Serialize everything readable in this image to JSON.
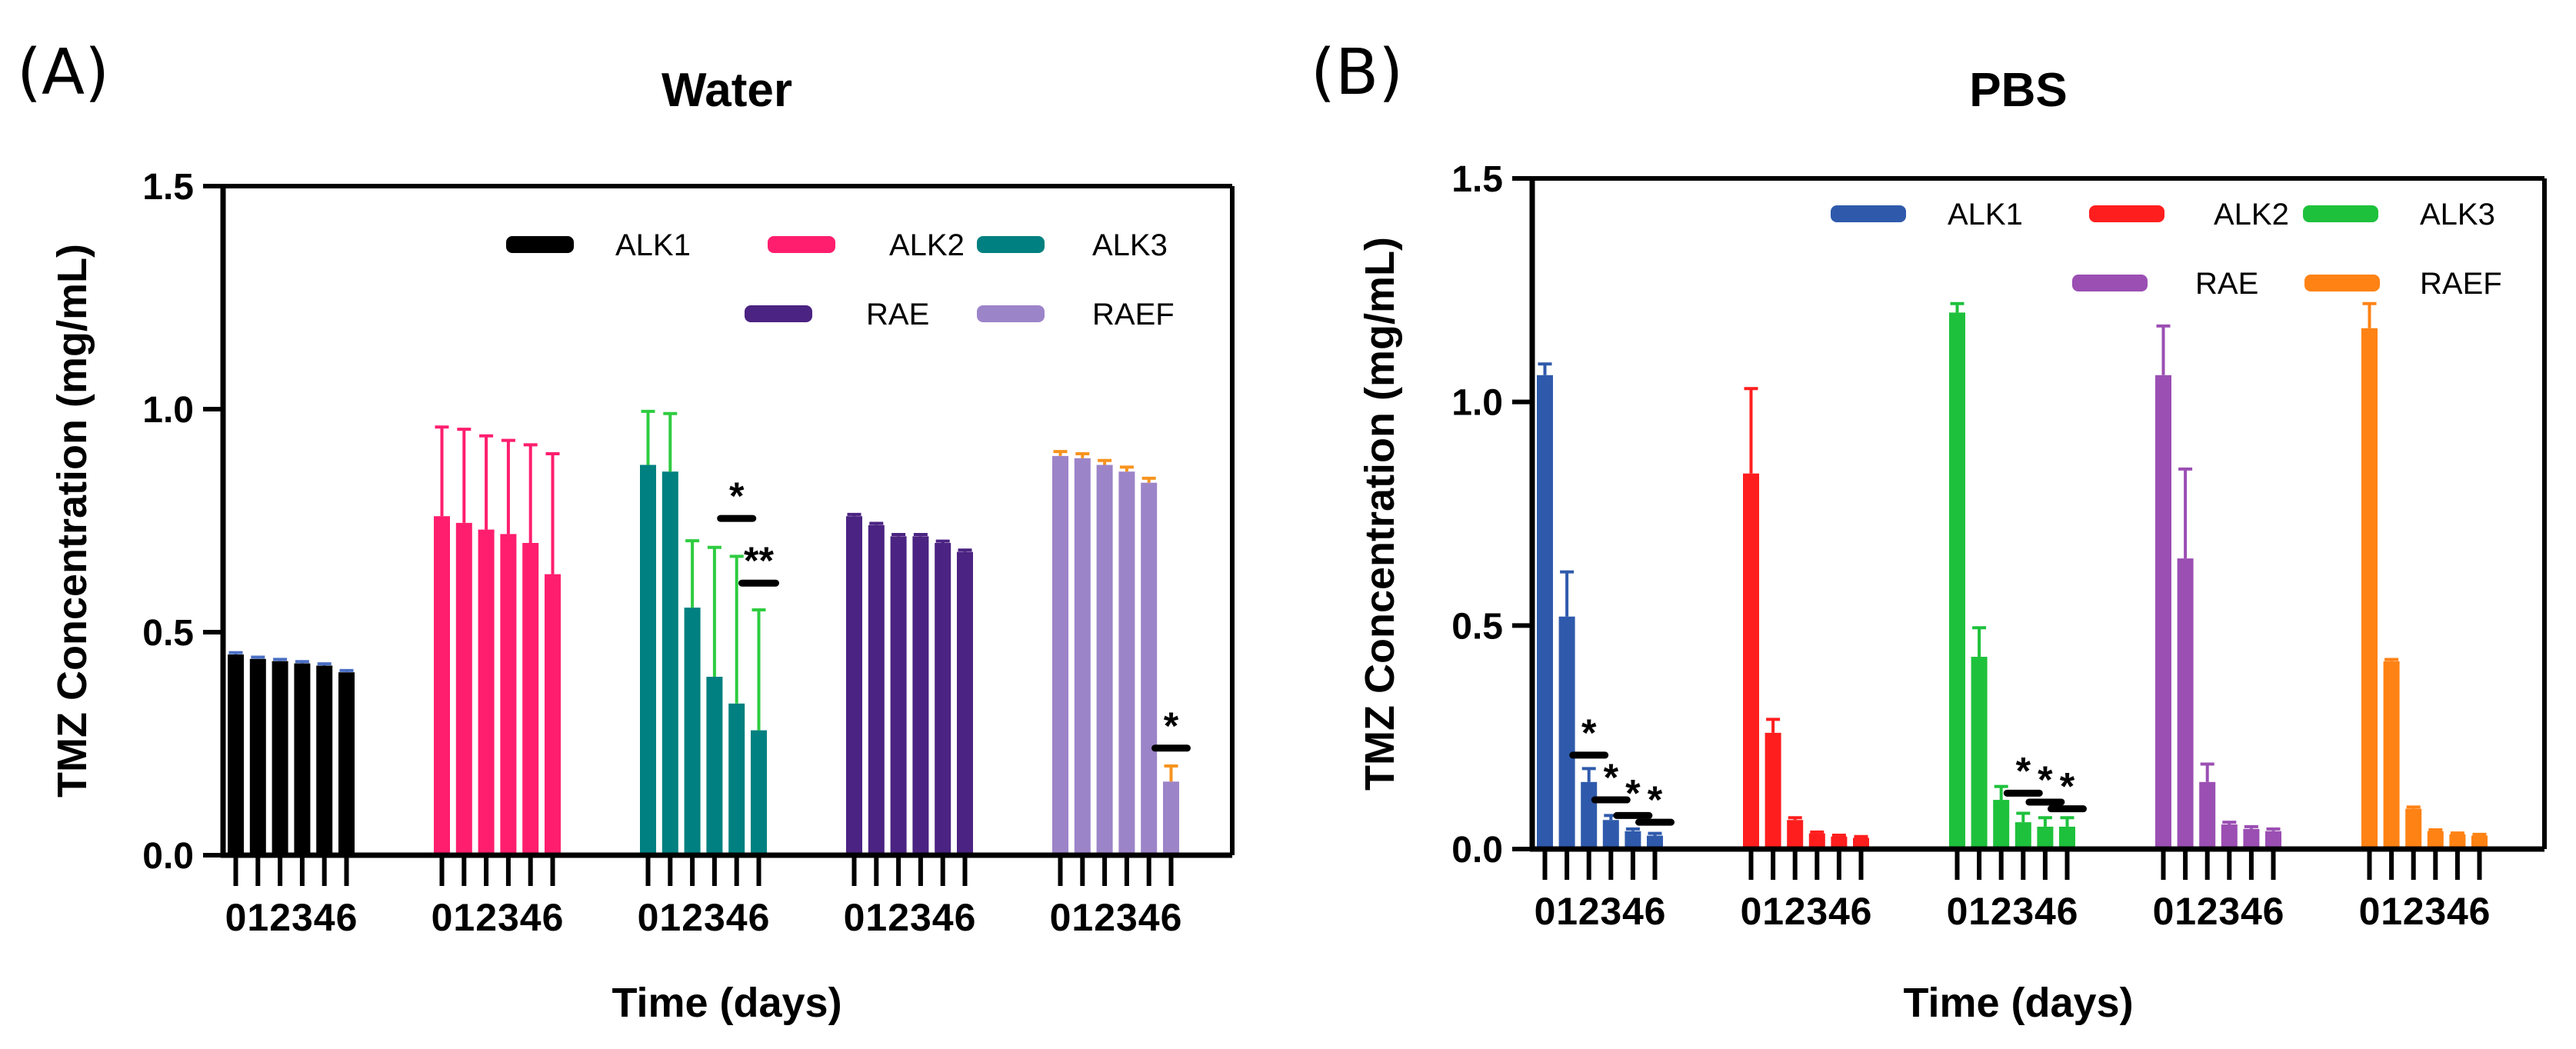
{
  "chart_data": [
    {
      "type": "bar",
      "panel": "(A)",
      "title": "Water",
      "ylabel": "TMZ Concentration (mg/mL)",
      "xlabel": "Time (days)",
      "ylim": [
        0,
        1.5
      ],
      "yticks": [
        "0.0",
        "0.5",
        "1.0",
        "1.5"
      ],
      "categories": [
        "0",
        "1",
        "2",
        "3",
        "4",
        "6"
      ],
      "legend_position": "top-right",
      "series": [
        {
          "name": "ALK1",
          "color": "#000000",
          "errcolor": "#4a6fc4",
          "values": [
            0.45,
            0.44,
            0.435,
            0.43,
            0.425,
            0.41
          ],
          "errors": [
            0.004,
            0.004,
            0.004,
            0.004,
            0.004,
            0.004
          ]
        },
        {
          "name": "ALK2",
          "color": "#ff1e6e",
          "errcolor": "#ff1e6e",
          "values": [
            0.76,
            0.745,
            0.73,
            0.72,
            0.7,
            0.63
          ],
          "errors": [
            0.2,
            0.21,
            0.21,
            0.21,
            0.22,
            0.27
          ]
        },
        {
          "name": "ALK3",
          "color": "#008080",
          "errcolor": "#2ecc40",
          "values": [
            0.875,
            0.86,
            0.555,
            0.4,
            0.34,
            0.28
          ],
          "errors": [
            0.12,
            0.13,
            0.15,
            0.29,
            0.33,
            0.27
          ]
        },
        {
          "name": "RAE",
          "color": "#4b2382",
          "errcolor": "#4b2382",
          "values": [
            0.76,
            0.74,
            0.715,
            0.715,
            0.7,
            0.68
          ],
          "errors": [
            0.004,
            0.004,
            0.004,
            0.004,
            0.004,
            0.004
          ]
        },
        {
          "name": "RAEF",
          "color": "#9c84c9",
          "errcolor": "#f7931e",
          "values": [
            0.895,
            0.89,
            0.875,
            0.86,
            0.835,
            0.165
          ],
          "errors": [
            0.01,
            0.01,
            0.01,
            0.01,
            0.01,
            0.035
          ]
        }
      ],
      "annotations": [
        {
          "text": "*",
          "series": "ALK3",
          "bar_index": 4,
          "bracket_y": 0.755
        },
        {
          "text": "**",
          "series": "ALK3",
          "bar_index": 5,
          "bracket_y": 0.61
        },
        {
          "text": "*",
          "series": "RAEF",
          "bar_index": 5,
          "bracket_y": 0.24
        }
      ]
    },
    {
      "type": "bar",
      "panel": "(B)",
      "title": "PBS",
      "ylabel": "TMZ Concentration (mg/mL)",
      "xlabel": "Time (days)",
      "ylim": [
        0,
        1.5
      ],
      "yticks": [
        "0.0",
        "0.5",
        "1.0",
        "1.5"
      ],
      "categories": [
        "0",
        "1",
        "2",
        "3",
        "4",
        "6"
      ],
      "legend_position": "top-right",
      "series": [
        {
          "name": "ALK1",
          "color": "#2f5aac",
          "errcolor": "#2f5aac",
          "values": [
            1.06,
            0.52,
            0.15,
            0.065,
            0.04,
            0.03
          ],
          "errors": [
            0.025,
            0.1,
            0.03,
            0.01,
            0.005,
            0.005
          ]
        },
        {
          "name": "ALK2",
          "color": "#ff1e1e",
          "errcolor": "#ff1e1e",
          "values": [
            0.84,
            0.26,
            0.065,
            0.035,
            0.028,
            0.025
          ],
          "errors": [
            0.19,
            0.03,
            0.005,
            0.003,
            0.003,
            0.003
          ]
        },
        {
          "name": "ALK3",
          "color": "#1ec13c",
          "errcolor": "#1ec13c",
          "values": [
            1.2,
            0.43,
            0.11,
            0.06,
            0.05,
            0.05
          ],
          "errors": [
            0.02,
            0.065,
            0.03,
            0.02,
            0.02,
            0.02
          ]
        },
        {
          "name": "RAE",
          "color": "#9b4fb3",
          "errcolor": "#9b4fb3",
          "values": [
            1.06,
            0.65,
            0.15,
            0.055,
            0.045,
            0.04
          ],
          "errors": [
            0.11,
            0.2,
            0.04,
            0.005,
            0.005,
            0.005
          ]
        },
        {
          "name": "RAEF",
          "color": "#ff8214",
          "errcolor": "#ff8214",
          "values": [
            1.165,
            0.42,
            0.09,
            0.04,
            0.033,
            0.03
          ],
          "errors": [
            0.055,
            0.004,
            0.004,
            0.003,
            0.003,
            0.003
          ]
        }
      ],
      "annotations": [
        {
          "text": "*",
          "series": "ALK1",
          "bar_index": 2,
          "bracket_y": 0.21
        },
        {
          "text": "*",
          "series": "ALK1",
          "bar_index": 3,
          "bracket_y": 0.11
        },
        {
          "text": "*",
          "series": "ALK1",
          "bar_index": 4,
          "bracket_y": 0.075
        },
        {
          "text": "*",
          "series": "ALK1",
          "bar_index": 5,
          "bracket_y": 0.06
        },
        {
          "text": "*",
          "series": "ALK3",
          "bar_index": 3,
          "bracket_y": 0.125
        },
        {
          "text": "*",
          "series": "ALK3",
          "bar_index": 4,
          "bracket_y": 0.105
        },
        {
          "text": "*",
          "series": "ALK3",
          "bar_index": 5,
          "bracket_y": 0.09
        }
      ]
    }
  ]
}
